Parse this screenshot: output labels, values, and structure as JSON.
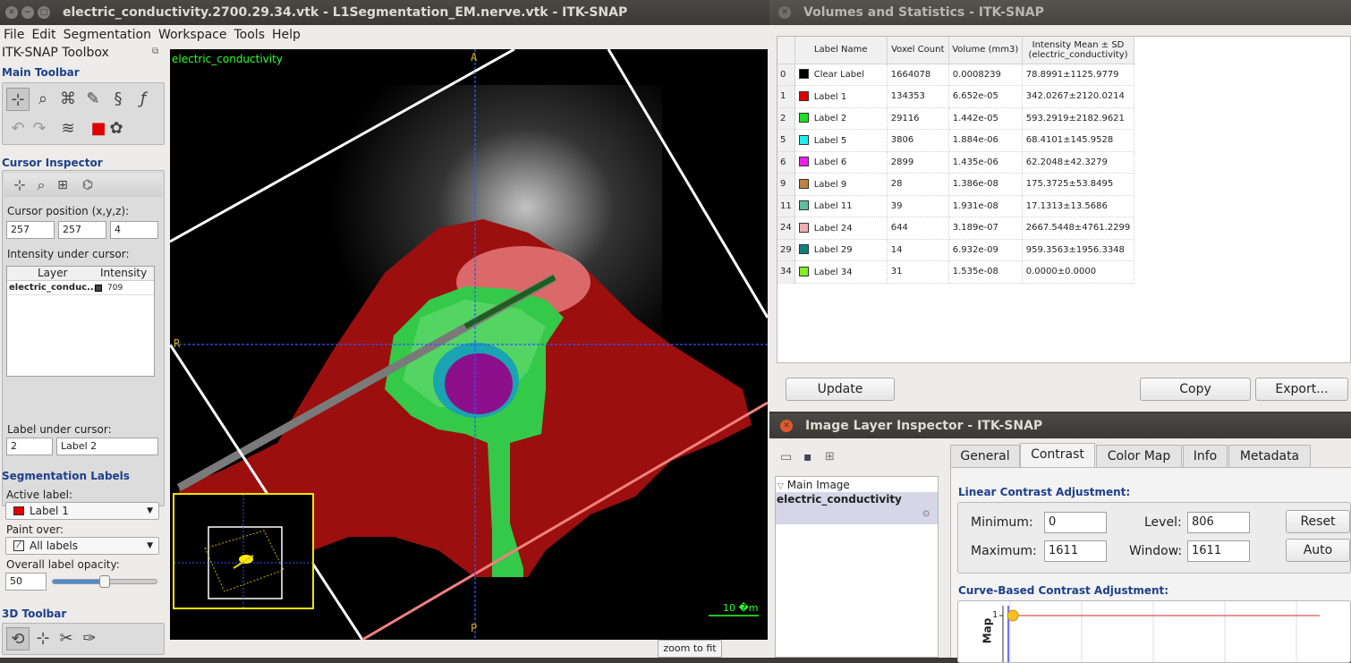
{
  "main_window": {
    "title": "electric_conductivity.2700.29.34.vtk - L1Segmentation_EM.nerve.vtk - ITK-SNAP",
    "menu": [
      "File",
      "Edit",
      "Segmentation",
      "Workspace",
      "Tools",
      "Help"
    ]
  },
  "toolbox": {
    "title": "ITK-SNAP Toolbox",
    "main_toolbar_header": "Main Toolbar",
    "cursor_inspector_header": "Cursor Inspector",
    "cursor_position_label": "Cursor position (x,y,z):",
    "cursor_x": "257",
    "cursor_y": "257",
    "cursor_z": "4",
    "intensity_label": "Intensity under cursor:",
    "layer_col": "Layer",
    "intensity_col": "Intensity",
    "layer_name": "electric_conduc...",
    "layer_value": "709",
    "label_under_cursor_label": "Label under cursor:",
    "label_id": "2",
    "label_name": "Label 2",
    "seg_labels_header": "Segmentation Labels",
    "active_label_label": "Active label:",
    "active_label_value": "Label 1",
    "paint_over_label": "Paint over:",
    "paint_over_value": "All labels",
    "opacity_label": "Overall label opacity:",
    "opacity_value": "50",
    "opacity_fraction": 0.5,
    "toolbar3d_header": "3D Toolbar"
  },
  "viewer": {
    "layer_name": "electric_conductivity",
    "dir_top": "A",
    "dir_left": "R",
    "dir_bottom": "P",
    "scale_label": "10 �m",
    "zoom_button": "zoom to fit"
  },
  "stats": {
    "title": "Volumes and Statistics - ITK-SNAP",
    "headers": [
      "Label Name",
      "Voxel Count",
      "Volume (mm3)",
      "Intensity Mean ± SD (electric_conductivity)"
    ],
    "rows": [
      {
        "id": "0",
        "color": "#000000",
        "name": "Clear Label",
        "count": "1664078",
        "volume": "0.0008239",
        "mean": "78.8991±1125.9779"
      },
      {
        "id": "1",
        "color": "#e00000",
        "name": "Label 1",
        "count": "134353",
        "volume": "6.652e-05",
        "mean": "342.0267±2120.0214"
      },
      {
        "id": "2",
        "color": "#1ee01e",
        "name": "Label 2",
        "count": "29116",
        "volume": "1.442e-05",
        "mean": "593.2919±2182.9621"
      },
      {
        "id": "5",
        "color": "#1ef0f0",
        "name": "Label 5",
        "count": "3806",
        "volume": "1.884e-06",
        "mean": "68.4101±145.9528"
      },
      {
        "id": "6",
        "color": "#f01ef0",
        "name": "Label 6",
        "count": "2899",
        "volume": "1.435e-06",
        "mean": "62.2048±42.3279"
      },
      {
        "id": "9",
        "color": "#c08040",
        "name": "Label 9",
        "count": "28",
        "volume": "1.386e-08",
        "mean": "175.3725±53.8495"
      },
      {
        "id": "11",
        "color": "#60c0a0",
        "name": "Label 11",
        "count": "39",
        "volume": "1.931e-08",
        "mean": "17.1313±13.5686"
      },
      {
        "id": "24",
        "color": "#f0b0b0",
        "name": "Label 24",
        "count": "644",
        "volume": "3.189e-07",
        "mean": "2667.5448±4761.2299"
      },
      {
        "id": "29",
        "color": "#108080",
        "name": "Label 29",
        "count": "14",
        "volume": "6.932e-09",
        "mean": "959.3563±1956.3348"
      },
      {
        "id": "34",
        "color": "#80f020",
        "name": "Label 34",
        "count": "31",
        "volume": "1.535e-08",
        "mean": "0.0000±0.0000"
      }
    ],
    "update_button": "Update",
    "copy_button": "Copy",
    "export_button": "Export..."
  },
  "layer_inspector": {
    "title": "Image Layer Inspector - ITK-SNAP",
    "tree_group": "Main Image",
    "tree_item": "electric_conductivity",
    "tabs": [
      "General",
      "Contrast",
      "Color Map",
      "Info",
      "Metadata"
    ],
    "linear_header": "Linear Contrast Adjustment:",
    "min_label": "Minimum:",
    "min_value": "0",
    "max_label": "Maximum:",
    "max_value": "1611",
    "level_label": "Level:",
    "level_value": "806",
    "window_label": "Window:",
    "window_value": "1611",
    "reset_button": "Reset",
    "auto_button": "Auto",
    "curve_header": "Curve-Based Contrast Adjustment:",
    "curve_axis_label": "Map",
    "curve_tick": "1"
  }
}
